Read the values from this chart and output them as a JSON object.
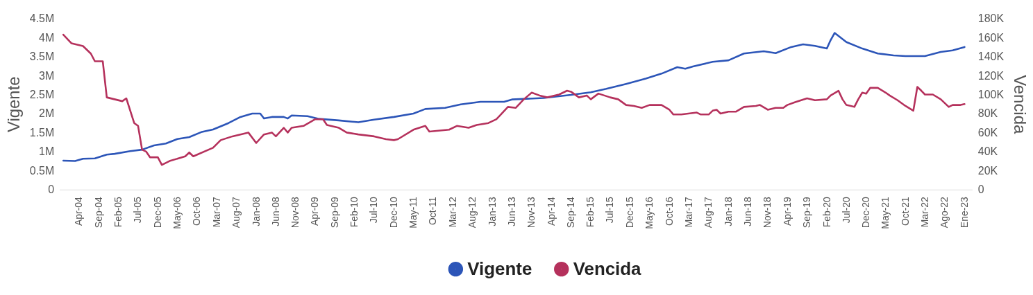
{
  "chart_data": {
    "type": "line",
    "ylabel": "Vigente",
    "y2label": "Vencida",
    "legend": "bottom",
    "grid": false,
    "line_style": "solid",
    "marker": "none",
    "xlim": [
      "2003-11",
      "2023-03"
    ],
    "xticks": [
      {
        "value": "2004-04",
        "label": "Apr-04"
      },
      {
        "value": "2004-09",
        "label": "Sep-04"
      },
      {
        "value": "2005-02",
        "label": "Feb-05"
      },
      {
        "value": "2005-07",
        "label": "Jul-05"
      },
      {
        "value": "2005-12",
        "label": "Dec-05"
      },
      {
        "value": "2006-05",
        "label": "May-06"
      },
      {
        "value": "2006-10",
        "label": "Oct-06"
      },
      {
        "value": "2007-03",
        "label": "Mar-07"
      },
      {
        "value": "2007-08",
        "label": "Aug-07"
      },
      {
        "value": "2008-01",
        "label": "Jan-08"
      },
      {
        "value": "2008-06",
        "label": "Jun-08"
      },
      {
        "value": "2008-11",
        "label": "Nov-08"
      },
      {
        "value": "2009-04",
        "label": "Apr-09"
      },
      {
        "value": "2009-09",
        "label": "Sep-09"
      },
      {
        "value": "2010-02",
        "label": "Feb-10"
      },
      {
        "value": "2010-07",
        "label": "Jul-10"
      },
      {
        "value": "2010-12",
        "label": "Dec-10"
      },
      {
        "value": "2011-05",
        "label": "May-11"
      },
      {
        "value": "2011-10",
        "label": "Oct-11"
      },
      {
        "value": "2012-03",
        "label": "Mar-12"
      },
      {
        "value": "2012-08",
        "label": "Aug-12"
      },
      {
        "value": "2013-01",
        "label": "Jan-13"
      },
      {
        "value": "2013-06",
        "label": "Jun-13"
      },
      {
        "value": "2013-11",
        "label": "Nov-13"
      },
      {
        "value": "2014-04",
        "label": "Apr-14"
      },
      {
        "value": "2014-09",
        "label": "Sep-14"
      },
      {
        "value": "2015-02",
        "label": "Feb-15"
      },
      {
        "value": "2015-07",
        "label": "Jul-15"
      },
      {
        "value": "2015-12",
        "label": "Dec-15"
      },
      {
        "value": "2016-05",
        "label": "May-16"
      },
      {
        "value": "2016-10",
        "label": "Oct-16"
      },
      {
        "value": "2017-03",
        "label": "Mar-17"
      },
      {
        "value": "2017-08",
        "label": "Aug-17"
      },
      {
        "value": "2018-01",
        "label": "Jan-18"
      },
      {
        "value": "2018-06",
        "label": "Jun-18"
      },
      {
        "value": "2018-11",
        "label": "Nov-18"
      },
      {
        "value": "2019-04",
        "label": "Apr-19"
      },
      {
        "value": "2019-09",
        "label": "Sep-19"
      },
      {
        "value": "2020-02",
        "label": "Feb-20"
      },
      {
        "value": "2020-07",
        "label": "Jul-20"
      },
      {
        "value": "2020-12",
        "label": "Dec-20"
      },
      {
        "value": "2021-05",
        "label": "May-21"
      },
      {
        "value": "2021-10",
        "label": "Oct-21"
      },
      {
        "value": "2022-03",
        "label": "Mar-22"
      },
      {
        "value": "2022-08",
        "label": "Ago-22"
      },
      {
        "value": "2023-01",
        "label": "Ene-23"
      }
    ],
    "ylim": [
      0,
      4500000
    ],
    "yticks": [
      {
        "value": 0,
        "label": "0"
      },
      {
        "value": 500000,
        "label": "0.5M"
      },
      {
        "value": 1000000,
        "label": "1M"
      },
      {
        "value": 1500000,
        "label": "1.5M"
      },
      {
        "value": 2000000,
        "label": "2M"
      },
      {
        "value": 2500000,
        "label": "2.5M"
      },
      {
        "value": 3000000,
        "label": "3M"
      },
      {
        "value": 3500000,
        "label": "3.5M"
      },
      {
        "value": 4000000,
        "label": "4M"
      },
      {
        "value": 4500000,
        "label": "4.5M"
      }
    ],
    "y2lim": [
      0,
      180000
    ],
    "y2ticks": [
      {
        "value": 0,
        "label": "0"
      },
      {
        "value": 20000,
        "label": "20K"
      },
      {
        "value": 40000,
        "label": "40K"
      },
      {
        "value": 60000,
        "label": "60K"
      },
      {
        "value": 80000,
        "label": "80K"
      },
      {
        "value": 100000,
        "label": "100K"
      },
      {
        "value": 120000,
        "label": "120K"
      },
      {
        "value": 140000,
        "label": "140K"
      },
      {
        "value": 160000,
        "label": "160K"
      },
      {
        "value": 180000,
        "label": "180K"
      }
    ],
    "series": [
      {
        "name": "Vigente",
        "color": "#2c55b8",
        "axis": "y",
        "x": [
          "2003-12",
          "2004-03",
          "2004-05",
          "2004-08",
          "2004-11",
          "2005-01",
          "2005-05",
          "2005-08",
          "2005-11",
          "2006-02",
          "2006-05",
          "2006-08",
          "2006-11",
          "2007-02",
          "2007-06",
          "2007-09",
          "2007-12",
          "2008-02",
          "2008-03",
          "2008-05",
          "2008-08",
          "2008-09",
          "2008-10",
          "2009-02",
          "2009-05",
          "2009-10",
          "2010-03",
          "2010-07",
          "2010-12",
          "2011-05",
          "2011-08",
          "2012-01",
          "2012-05",
          "2012-10",
          "2013-04",
          "2013-06",
          "2014-02",
          "2014-09",
          "2015-02",
          "2015-06",
          "2015-11",
          "2016-04",
          "2016-08",
          "2016-12",
          "2017-02",
          "2017-04",
          "2017-09",
          "2018-01",
          "2018-05",
          "2018-10",
          "2019-01",
          "2019-05",
          "2019-08",
          "2019-11",
          "2020-02",
          "2020-03",
          "2020-04",
          "2020-07",
          "2020-11",
          "2021-03",
          "2021-07",
          "2021-10",
          "2022-03",
          "2022-07",
          "2022-10",
          "2023-01"
        ],
        "values": [
          760000,
          750000,
          810000,
          820000,
          920000,
          940000,
          1010000,
          1050000,
          1160000,
          1210000,
          1330000,
          1380000,
          1510000,
          1580000,
          1750000,
          1910000,
          2000000,
          2000000,
          1870000,
          1910000,
          1910000,
          1870000,
          1950000,
          1930000,
          1860000,
          1820000,
          1770000,
          1840000,
          1910000,
          2000000,
          2120000,
          2150000,
          2240000,
          2310000,
          2310000,
          2370000,
          2410000,
          2490000,
          2560000,
          2650000,
          2780000,
          2920000,
          3050000,
          3220000,
          3180000,
          3240000,
          3360000,
          3400000,
          3580000,
          3640000,
          3590000,
          3750000,
          3820000,
          3780000,
          3710000,
          3930000,
          4120000,
          3880000,
          3710000,
          3580000,
          3530000,
          3510000,
          3510000,
          3620000,
          3660000,
          3750000
        ]
      },
      {
        "name": "Vencida",
        "color": "#b5315c",
        "axis": "y2",
        "x": [
          "2003-12",
          "2004-02",
          "2004-05",
          "2004-07",
          "2004-08",
          "2004-10",
          "2004-11",
          "2005-03",
          "2005-04",
          "2005-06",
          "2005-07",
          "2005-08",
          "2005-09",
          "2005-10",
          "2005-12",
          "2006-01",
          "2006-03",
          "2006-07",
          "2006-08",
          "2006-09",
          "2007-02",
          "2007-04",
          "2007-07",
          "2007-11",
          "2008-01",
          "2008-03",
          "2008-05",
          "2008-06",
          "2008-08",
          "2008-09",
          "2008-10",
          "2009-01",
          "2009-04",
          "2009-06",
          "2009-07",
          "2009-10",
          "2009-12",
          "2010-03",
          "2010-07",
          "2010-10",
          "2010-12",
          "2011-01",
          "2011-05",
          "2011-08",
          "2011-09",
          "2012-02",
          "2012-04",
          "2012-07",
          "2012-09",
          "2012-12",
          "2013-02",
          "2013-03",
          "2013-05",
          "2013-07",
          "2013-09",
          "2013-11",
          "2014-01",
          "2014-03",
          "2014-06",
          "2014-08",
          "2014-09",
          "2014-11",
          "2015-01",
          "2015-02",
          "2015-04",
          "2015-07",
          "2015-09",
          "2015-11",
          "2016-01",
          "2016-03",
          "2016-05",
          "2016-08",
          "2016-10",
          "2016-11",
          "2017-01",
          "2017-05",
          "2017-06",
          "2017-08",
          "2017-09",
          "2017-10",
          "2017-11",
          "2018-01",
          "2018-03",
          "2018-05",
          "2018-08",
          "2018-09",
          "2018-11",
          "2019-01",
          "2019-03",
          "2019-04",
          "2019-06",
          "2019-09",
          "2019-11",
          "2020-02",
          "2020-03",
          "2020-05",
          "2020-06",
          "2020-07",
          "2020-09",
          "2020-10",
          "2020-11",
          "2020-12",
          "2021-01",
          "2021-03",
          "2021-05",
          "2021-06",
          "2021-08",
          "2021-10",
          "2021-12",
          "2022-01",
          "2022-02",
          "2022-03",
          "2022-05",
          "2022-07",
          "2022-09",
          "2022-10",
          "2022-12",
          "2023-01"
        ],
        "values": [
          163000,
          154000,
          151000,
          143000,
          135000,
          135000,
          97000,
          93000,
          96000,
          70000,
          67000,
          42000,
          40000,
          34000,
          34000,
          26000,
          30000,
          35000,
          39000,
          35000,
          44000,
          52000,
          56000,
          60000,
          49000,
          58000,
          60000,
          56000,
          65000,
          60000,
          65000,
          67000,
          74000,
          74000,
          68000,
          65000,
          60000,
          58000,
          56000,
          53000,
          52000,
          53000,
          63000,
          67000,
          61000,
          63000,
          67000,
          65000,
          68000,
          70000,
          74000,
          78000,
          87000,
          86000,
          95000,
          102000,
          99000,
          97000,
          100000,
          104000,
          103000,
          97000,
          99000,
          95000,
          101000,
          97000,
          95000,
          89000,
          88000,
          86000,
          89000,
          89000,
          84000,
          79000,
          79000,
          81000,
          79000,
          79000,
          83000,
          84000,
          80000,
          82000,
          82000,
          87000,
          88000,
          89000,
          84000,
          86000,
          86000,
          89000,
          92000,
          96000,
          94000,
          95000,
          99000,
          104000,
          95000,
          89000,
          87000,
          95000,
          102000,
          101000,
          107000,
          107000,
          102000,
          99000,
          94000,
          88000,
          83000,
          108000,
          104000,
          100000,
          100000,
          95000,
          87000,
          89000,
          89000,
          90000
        ]
      }
    ]
  }
}
